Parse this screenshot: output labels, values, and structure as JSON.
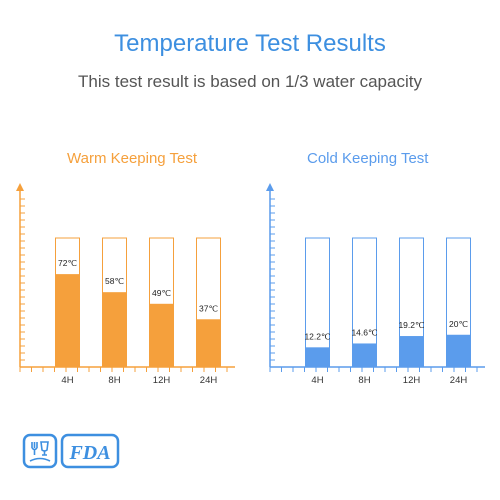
{
  "header": {
    "title": "Temperature Test Results",
    "subtitle": "This test result is based on 1/3 water capacity"
  },
  "colors": {
    "title": "#3d8fe0",
    "warm": "#f5a03c",
    "cold": "#5b9cec",
    "subtitle": "#555555"
  },
  "chart_data": [
    {
      "type": "bar",
      "title": "Warm Keeping Test",
      "categories": [
        "4H",
        "8H",
        "12H",
        "24H"
      ],
      "values": [
        72,
        58,
        49,
        37
      ],
      "labels": [
        "72℃",
        "58℃",
        "49℃",
        "37℃"
      ],
      "ylim": [
        0,
        100
      ],
      "color": "#f5a03c"
    },
    {
      "type": "bar",
      "title": "Cold Keeping Test",
      "categories": [
        "4H",
        "8H",
        "12H",
        "24H"
      ],
      "values": [
        12.2,
        14.6,
        19.2,
        20
      ],
      "labels": [
        "12.2℃",
        "14.6℃",
        "19.2℃",
        "20℃"
      ],
      "ylim": [
        0,
        80
      ],
      "color": "#5b9cec"
    }
  ],
  "badges": {
    "icons": [
      "food-safe-icon",
      "fda-icon"
    ],
    "fda_label": "FDA"
  }
}
